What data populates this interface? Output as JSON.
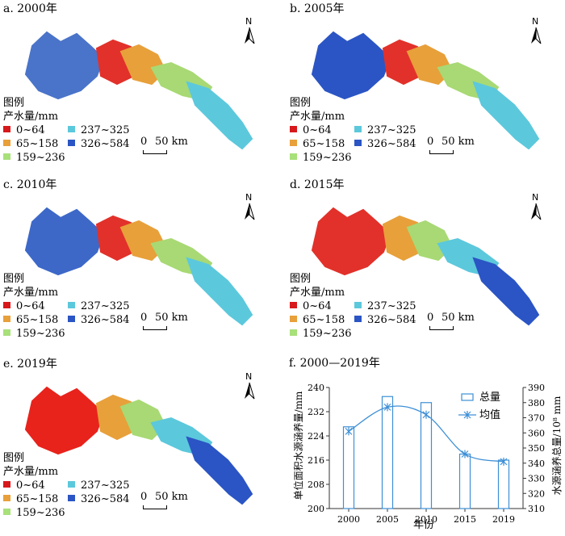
{
  "maps": [
    {
      "title": "a. 2000年",
      "fills": [
        "#4a74c9",
        "#e2312a",
        "#e8a03a",
        "#a8d974",
        "#5cc8dc"
      ]
    },
    {
      "title": "b. 2005年",
      "fills": [
        "#2b55c4",
        "#e2312a",
        "#e8a03a",
        "#a8d974",
        "#5cc8dc"
      ]
    },
    {
      "title": "c. 2010年",
      "fills": [
        "#3d68c8",
        "#e2312a",
        "#e8a03a",
        "#a8d974",
        "#5cc8dc"
      ]
    },
    {
      "title": "d. 2015年",
      "fills": [
        "#e2312a",
        "#e8a03a",
        "#a8d974",
        "#5cc8dc",
        "#2b55c4"
      ]
    },
    {
      "title": "e. 2019年",
      "fills": [
        "#e8231c",
        "#e8a03a",
        "#a8d974",
        "#5cc8dc",
        "#2b55c4"
      ]
    }
  ],
  "north_label": "N",
  "legend": {
    "title": "图例",
    "unit": "产水量/mm",
    "items": [
      {
        "label": "0~64",
        "color": "#d7191c"
      },
      {
        "label": "65~158",
        "color": "#e8a03a"
      },
      {
        "label": "159~236",
        "color": "#a8e07a"
      },
      {
        "label": "237~325",
        "color": "#5cc8dc"
      },
      {
        "label": "326~584",
        "color": "#2b55c4"
      }
    ]
  },
  "scalebar": {
    "zero": "0",
    "label": "50 km"
  },
  "chart_data": {
    "type": "bar",
    "title": "f. 2000—2019年",
    "categories": [
      "2000",
      "2005",
      "2010",
      "2015",
      "2019"
    ],
    "xlabel": "年份",
    "ylabel": "单位面积水源涵养量/mm",
    "y2label": "水源涵养总量/10⁸ mm",
    "ylim": [
      200,
      240
    ],
    "y2lim": [
      310,
      390
    ],
    "yticks": [
      "200",
      "208",
      "216",
      "224",
      "232",
      "240"
    ],
    "y2ticks": [
      "310",
      "320",
      "330",
      "340",
      "350",
      "360",
      "370",
      "380",
      "390"
    ],
    "series": [
      {
        "name": "总量",
        "type": "bar",
        "axis": "right",
        "values": [
          364,
          384,
          380,
          346,
          342
        ]
      },
      {
        "name": "均值",
        "type": "line",
        "axis": "left",
        "values": [
          225.5,
          233.5,
          231,
          218,
          215.5
        ]
      }
    ],
    "color": "#3d8fd6",
    "legend_position": "top-right"
  }
}
